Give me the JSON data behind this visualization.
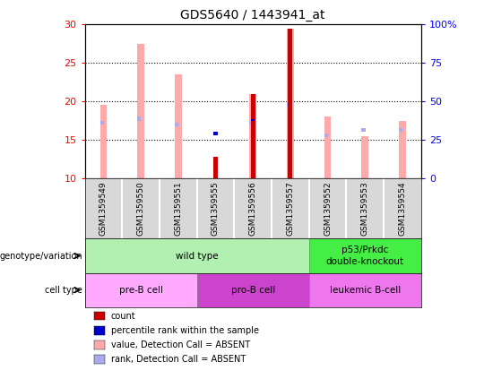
{
  "title": "GDS5640 / 1443941_at",
  "samples": [
    "GSM1359549",
    "GSM1359550",
    "GSM1359551",
    "GSM1359555",
    "GSM1359556",
    "GSM1359557",
    "GSM1359552",
    "GSM1359553",
    "GSM1359554"
  ],
  "ylim": [
    10,
    30
  ],
  "ylim_right": [
    0,
    100
  ],
  "yticks_left": [
    10,
    15,
    20,
    25,
    30
  ],
  "yticks_right": [
    0,
    25,
    50,
    75,
    100
  ],
  "pink_bar_tops": [
    19.5,
    27.5,
    23.5,
    null,
    21.0,
    29.5,
    18.0,
    15.5,
    17.5
  ],
  "pink_bar_bottoms": [
    10,
    10,
    10,
    null,
    10,
    10,
    10,
    10,
    10
  ],
  "blue_rank_tops": [
    17.5,
    18.0,
    17.2,
    null,
    17.5,
    19.8,
    15.8,
    16.5,
    16.5
  ],
  "blue_rank_bottoms": [
    17.0,
    17.5,
    16.8,
    null,
    17.0,
    19.3,
    15.4,
    16.1,
    16.1
  ],
  "red_count_tops": [
    null,
    null,
    null,
    12.8,
    21.0,
    29.5,
    null,
    null,
    null
  ],
  "red_count_bottoms": [
    null,
    null,
    null,
    10,
    10,
    10,
    null,
    null,
    null
  ],
  "blue_pct_tops": [
    null,
    null,
    null,
    16.0,
    17.7,
    null,
    null,
    null,
    null
  ],
  "blue_pct_bottoms": [
    null,
    null,
    null,
    15.6,
    17.4,
    null,
    null,
    null,
    null
  ],
  "genotype_groups": [
    {
      "label": "wild type",
      "start": 0,
      "end": 6,
      "color": "#b2f0b2"
    },
    {
      "label": "p53/Prkdc\ndouble-knockout",
      "start": 6,
      "end": 9,
      "color": "#44ee44"
    }
  ],
  "cell_type_groups": [
    {
      "label": "pre-B cell",
      "start": 0,
      "end": 3,
      "color": "#ffaaff"
    },
    {
      "label": "pro-B cell",
      "start": 3,
      "end": 6,
      "color": "#cc44cc"
    },
    {
      "label": "leukemic B-cell",
      "start": 6,
      "end": 9,
      "color": "#ee77ee"
    }
  ],
  "pink_color": "#ffaaaa",
  "blue_rank_color": "#aaaaee",
  "red_count_color": "#cc0000",
  "blue_pct_color": "#0000cc",
  "legend_items": [
    [
      "#cc0000",
      "count"
    ],
    [
      "#0000cc",
      "percentile rank within the sample"
    ],
    [
      "#ffaaaa",
      "value, Detection Call = ABSENT"
    ],
    [
      "#aaaaee",
      "rank, Detection Call = ABSENT"
    ]
  ]
}
